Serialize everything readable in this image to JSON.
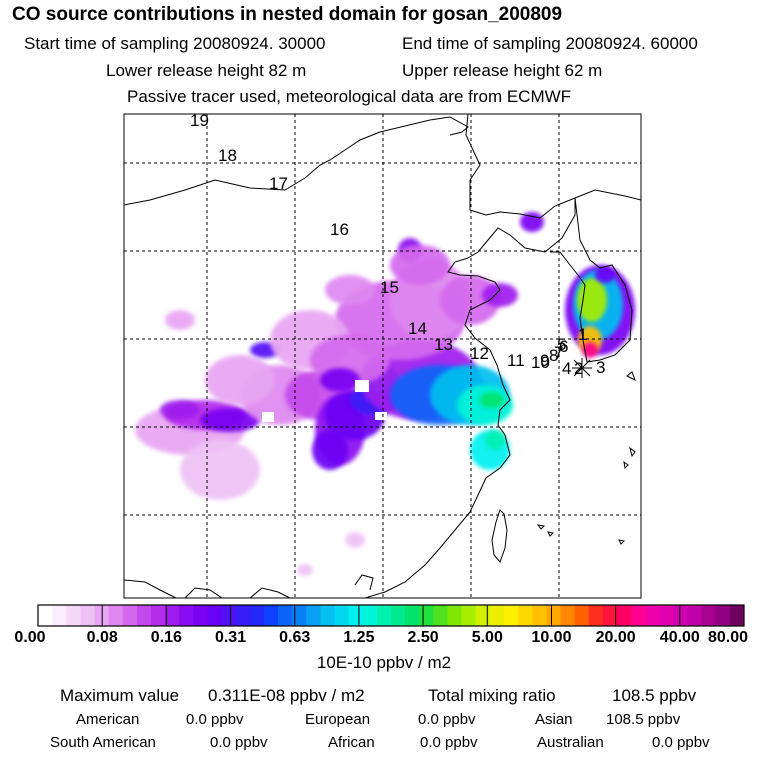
{
  "header": {
    "title": "CO  source contributions in nested domain for gosan_200809",
    "start_time": "Start time of sampling 20080924. 30000",
    "end_time": "End time of sampling 20080924. 60000",
    "lower_height": "Lower release height   82 m",
    "upper_height": "Upper release height   62 m",
    "tracer_note": "Passive tracer used, meteorological data are from ECMWF"
  },
  "chart_data": {
    "type": "heatmap",
    "title": "CO  source contributions in nested domain for gosan_200809",
    "colorbar": {
      "unit": "10E-10 ppbv / m2",
      "tick_labels": [
        "0.00",
        "0.08",
        "0.16",
        "0.31",
        "0.63",
        "1.25",
        "2.50",
        "5.00",
        "10.00",
        "20.00",
        "40.00",
        "80.00"
      ],
      "colors": [
        "#ffffff",
        "#fbeefc",
        "#f5d8f8",
        "#efc2f6",
        "#e8a6f3",
        "#df88f0",
        "#d469ee",
        "#c449ec",
        "#b42ded",
        "#9f1bee",
        "#8a0cf0",
        "#7a00f2",
        "#6a00f5",
        "#5210f7",
        "#3a1cf9",
        "#2428fb",
        "#1040ff",
        "#0a64f8",
        "#0a80f5",
        "#08a0f2",
        "#05bff0",
        "#00d8f0",
        "#00f0f0",
        "#00f5d8",
        "#00f0b0",
        "#00ea90",
        "#00e46a",
        "#20e040",
        "#50e020",
        "#80e800",
        "#a8ee00",
        "#d0f200",
        "#ecf000",
        "#fff000",
        "#ffd800",
        "#ffc000",
        "#ffa800",
        "#ff8800",
        "#ff6000",
        "#ff3020",
        "#ff1440",
        "#ff0060",
        "#ff0090",
        "#f000a8",
        "#e000b0",
        "#d000b0",
        "#c000a8",
        "#a80090",
        "#900080",
        "#700060"
      ]
    },
    "trajectory_labels": [
      "19",
      "18",
      "17",
      "16",
      "15",
      "14",
      "13",
      "12",
      "11",
      "10",
      "9",
      "8",
      "7",
      "6",
      "5",
      "4",
      "3",
      "2",
      "1"
    ],
    "receptor_values": {
      "maximum_value": "0.311E-08 ppbv / m2",
      "total_mixing_ratio": "108.5 ppbv"
    }
  },
  "stats": {
    "max_label": "Maximum value",
    "max_value": "0.311E-08 ppbv / m2",
    "total_label": "Total mixing ratio",
    "total_value": "108.5 ppbv"
  },
  "regions": [
    {
      "name": "American",
      "value": "0.0 ppbv"
    },
    {
      "name": "European",
      "value": "0.0 ppbv"
    },
    {
      "name": "Asian",
      "value": "108.5 ppbv"
    },
    {
      "name": "South American",
      "value": "0.0 ppbv"
    },
    {
      "name": "African",
      "value": "0.0 ppbv"
    },
    {
      "name": "Australian",
      "value": "0.0 ppbv"
    }
  ]
}
